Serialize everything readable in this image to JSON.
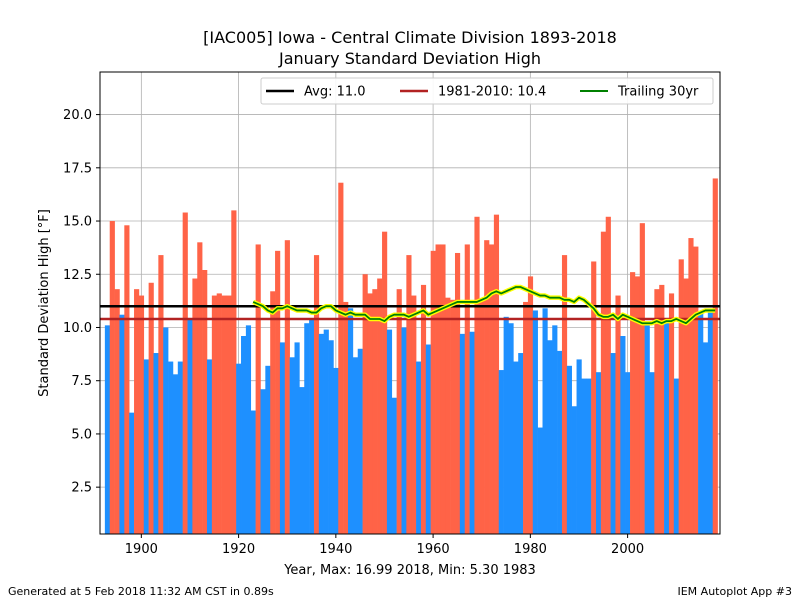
{
  "chart_data": {
    "type": "bar",
    "title": "[IAC005] Iowa - Central Climate Division 1893-2018",
    "subtitle": "January Standard Deviation High",
    "xlabel": "Year, Max: 16.99 2018, Min: 5.30 1983",
    "ylabel": "Standard Deviation High [°F]",
    "xlim": [
      1891.5,
      2019
    ],
    "ylim": [
      0.3,
      22.0
    ],
    "xticks": [
      1900,
      1920,
      1940,
      1960,
      1980,
      2000
    ],
    "yticks": [
      2.5,
      5.0,
      7.5,
      10.0,
      12.5,
      15.0,
      17.5,
      20.0
    ],
    "grid": true,
    "legend_position": "top-right",
    "colors": {
      "above": "#ff6347",
      "below": "#1e90ff",
      "avg": "#000000",
      "climo": "#b22222",
      "trailing": "#008000",
      "trailing_glow": "#ffff00"
    },
    "legend": [
      "Avg: 11.0",
      "1981-2010: 10.4",
      "Trailing 30yr"
    ],
    "average": 11.0,
    "climo_1981_2010": 10.4,
    "start_year": 1893,
    "values": [
      10.1,
      15.0,
      11.8,
      10.6,
      14.8,
      6.0,
      11.8,
      11.5,
      8.5,
      12.1,
      8.8,
      13.4,
      10.0,
      8.4,
      7.8,
      8.4,
      15.4,
      10.4,
      12.3,
      14.0,
      12.7,
      8.5,
      11.5,
      11.6,
      11.5,
      11.5,
      15.5,
      8.3,
      9.6,
      10.1,
      6.1,
      13.9,
      7.1,
      8.2,
      11.7,
      13.6,
      9.3,
      14.1,
      8.6,
      9.3,
      7.2,
      10.2,
      10.4,
      13.4,
      9.7,
      9.9,
      9.4,
      8.1,
      16.8,
      11.2,
      10.9,
      8.6,
      9.0,
      12.5,
      11.6,
      11.8,
      12.3,
      14.5,
      9.9,
      6.7,
      11.8,
      10.0,
      13.4,
      11.5,
      8.4,
      12.0,
      9.2,
      13.6,
      13.9,
      13.9,
      11.4,
      11.3,
      13.5,
      9.7,
      13.9,
      9.8,
      15.2,
      11.3,
      14.1,
      13.9,
      15.3,
      8.0,
      10.5,
      10.2,
      8.4,
      8.8,
      11.2,
      12.4,
      10.8,
      5.3,
      10.9,
      9.4,
      10.1,
      8.9,
      13.4,
      8.2,
      6.3,
      8.5,
      7.6,
      7.6,
      13.1,
      7.9,
      14.5,
      15.2,
      8.8,
      11.5,
      9.6,
      7.9,
      12.6,
      12.4,
      14.9,
      10.1,
      7.9,
      11.8,
      12.0,
      10.3,
      11.6,
      7.6,
      13.2,
      12.3,
      14.2,
      13.8,
      10.7,
      9.3,
      10.8,
      17.0
    ],
    "trailing_start_year": 1923,
    "trailing_values": [
      11.2,
      11.1,
      11.0,
      10.8,
      10.7,
      10.9,
      10.9,
      11.0,
      10.9,
      10.8,
      10.8,
      10.8,
      10.7,
      10.7,
      10.9,
      11.0,
      11.0,
      10.8,
      10.7,
      10.6,
      10.7,
      10.6,
      10.6,
      10.6,
      10.4,
      10.4,
      10.4,
      10.3,
      10.5,
      10.6,
      10.6,
      10.6,
      10.5,
      10.6,
      10.7,
      10.8,
      10.6,
      10.7,
      10.8,
      10.9,
      11.0,
      11.1,
      11.2,
      11.2,
      11.2,
      11.2,
      11.2,
      11.3,
      11.4,
      11.6,
      11.7,
      11.6,
      11.7,
      11.8,
      11.9,
      11.9,
      11.8,
      11.7,
      11.6,
      11.5,
      11.5,
      11.4,
      11.4,
      11.4,
      11.3,
      11.3,
      11.2,
      11.4,
      11.3,
      11.1,
      10.9,
      10.6,
      10.5,
      10.5,
      10.6,
      10.4,
      10.6,
      10.5,
      10.4,
      10.3,
      10.2,
      10.2,
      10.2,
      10.3,
      10.2,
      10.3,
      10.3,
      10.4,
      10.3,
      10.2,
      10.4,
      10.6,
      10.7,
      10.8,
      10.8,
      10.8
    ]
  },
  "footer": {
    "generated": "Generated at 5 Feb 2018 11:32 AM CST in 0.89s",
    "app": "IEM Autoplot App #3"
  }
}
